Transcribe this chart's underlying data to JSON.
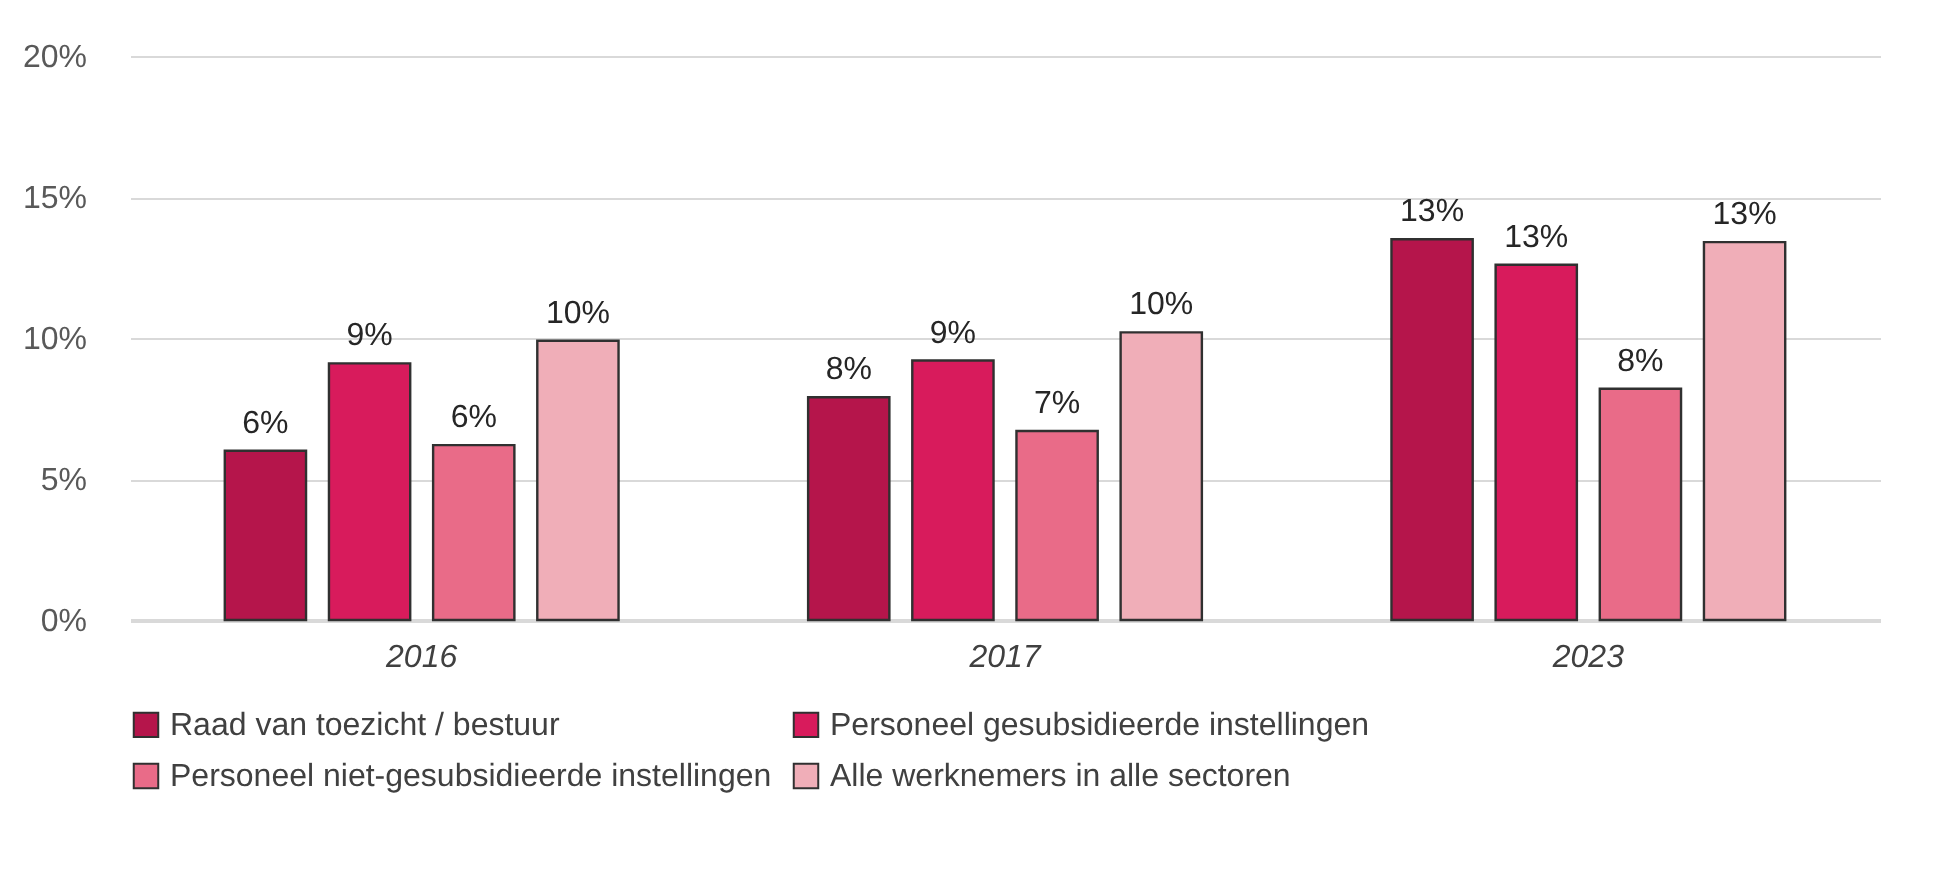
{
  "chart_data": {
    "type": "bar",
    "categories": [
      "2016",
      "2017",
      "2023"
    ],
    "series": [
      {
        "name": "Raad van toezicht / bestuur",
        "color": "#b5154b",
        "values": [
          6.0,
          7.9,
          13.5
        ],
        "value_labels": [
          "6%",
          "8%",
          "13%"
        ]
      },
      {
        "name": "Personeel gesubsidieerde instellingen",
        "color": "#d81b5c",
        "values": [
          9.1,
          9.2,
          12.6
        ],
        "value_labels": [
          "9%",
          "9%",
          "13%"
        ]
      },
      {
        "name": "Personeel niet-gesubsidieerde instellingen",
        "color": "#e96b88",
        "values": [
          6.2,
          6.7,
          8.2
        ],
        "value_labels": [
          "6%",
          "7%",
          "8%"
        ]
      },
      {
        "name": "Alle werknemers in alle sectoren",
        "color": "#f0aeb8",
        "values": [
          9.9,
          10.2,
          13.4
        ],
        "value_labels": [
          "10%",
          "10%",
          "13%"
        ]
      }
    ],
    "ylim": [
      0,
      20
    ],
    "yticks": [
      {
        "value": 0,
        "label": "0%"
      },
      {
        "value": 5,
        "label": "5%"
      },
      {
        "value": 10,
        "label": "10%"
      },
      {
        "value": 15,
        "label": "15%"
      },
      {
        "value": 20,
        "label": "20%"
      }
    ],
    "grid": "y",
    "legend": "bottom"
  }
}
